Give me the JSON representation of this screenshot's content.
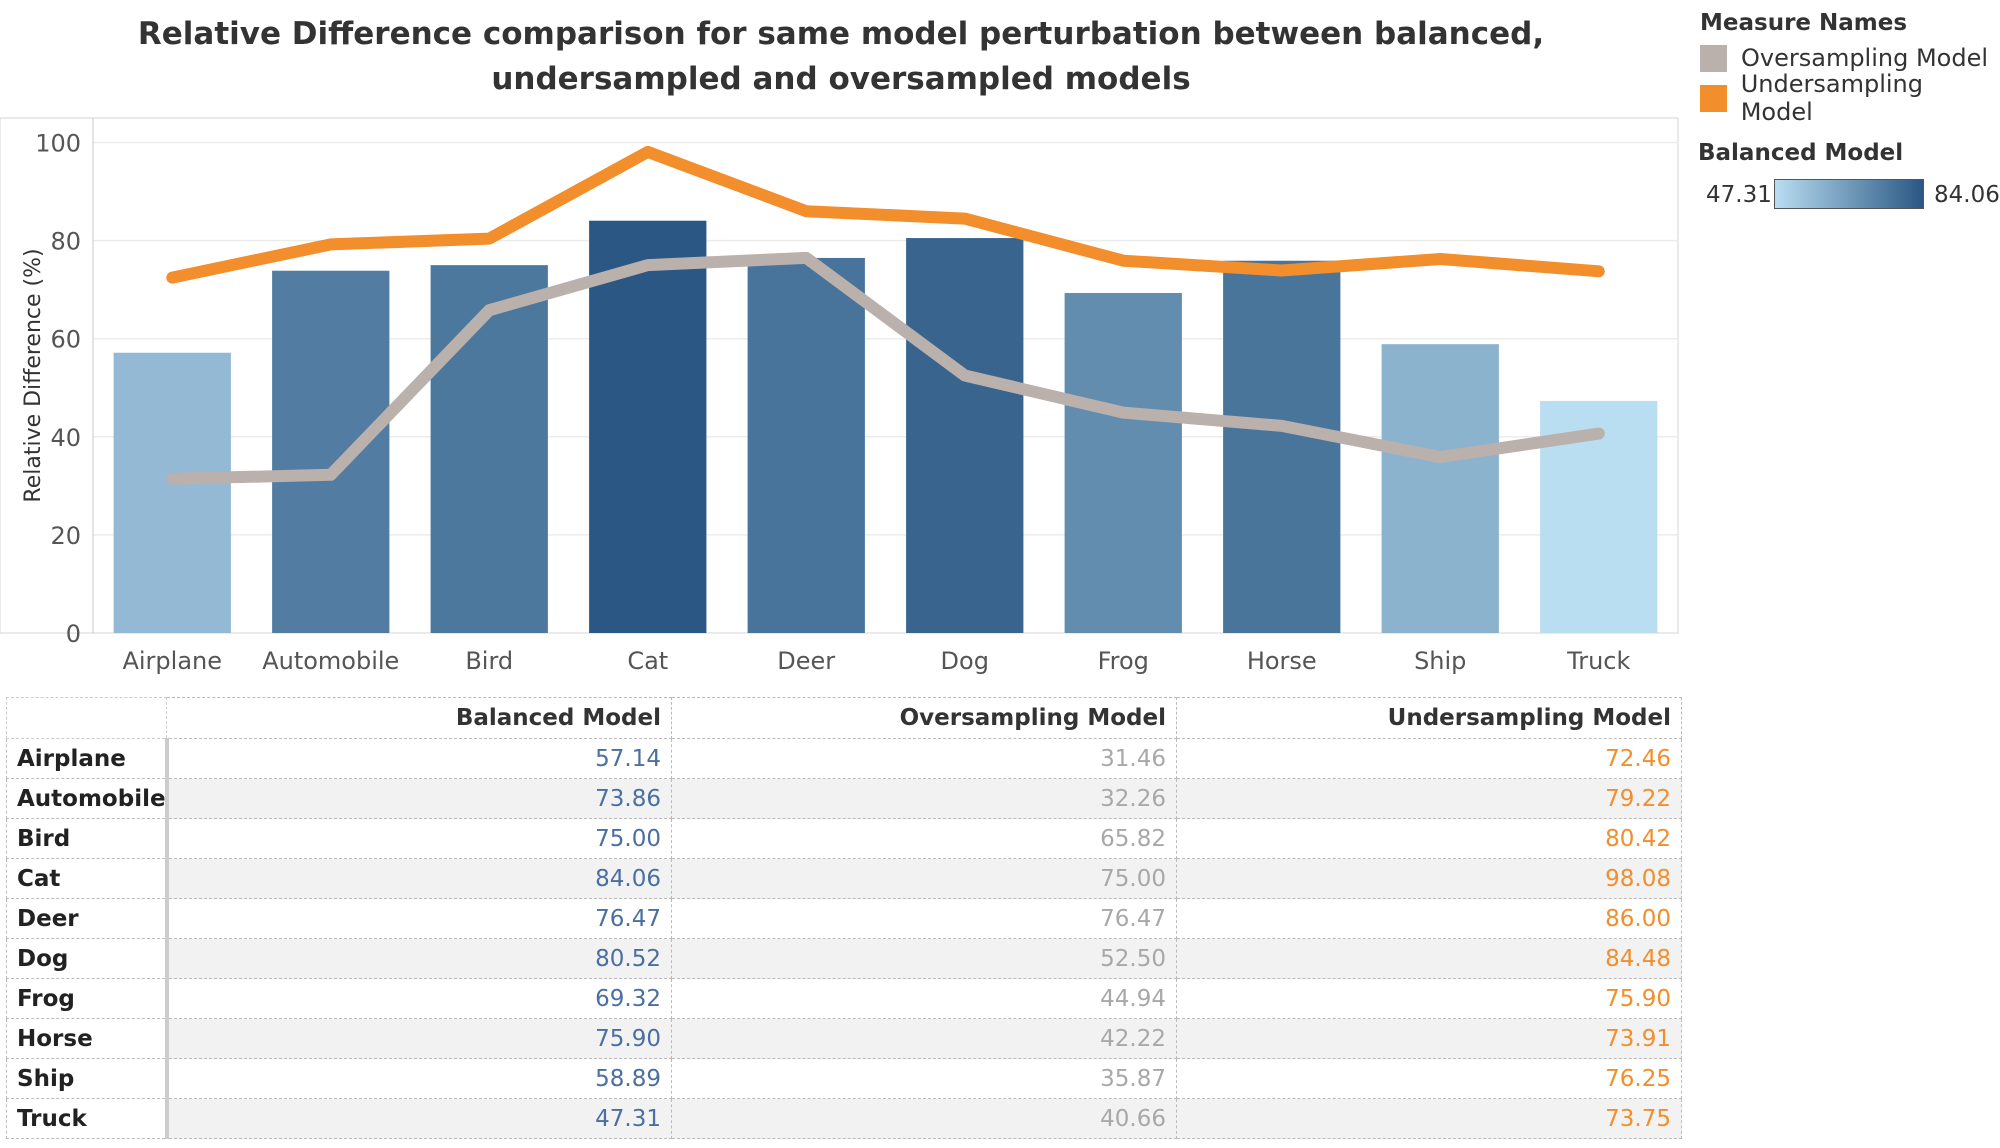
{
  "chart_data": {
    "type": "bar",
    "title": "Relative Difference comparison for same model perturbation between balanced, undersampled and oversampled models",
    "ylabel": "Relative Difference (%)",
    "xlabel": "",
    "ylim": [
      0,
      105
    ],
    "yticks": [
      0,
      20,
      40,
      60,
      80,
      100
    ],
    "grid": true,
    "categories": [
      "Airplane",
      "Automobile",
      "Bird",
      "Cat",
      "Deer",
      "Dog",
      "Frog",
      "Horse",
      "Ship",
      "Truck"
    ],
    "series": [
      {
        "name": "Balanced Model",
        "type": "bar",
        "values": [
          57.14,
          73.86,
          75.0,
          84.06,
          76.47,
          80.52,
          69.32,
          75.9,
          58.89,
          47.31
        ]
      },
      {
        "name": "Oversampling Model",
        "type": "line",
        "color": "#bab0ac",
        "values": [
          31.46,
          32.26,
          65.82,
          75.0,
          76.47,
          52.5,
          44.94,
          42.22,
          35.87,
          40.66
        ]
      },
      {
        "name": "Undersampling Model",
        "type": "line",
        "color": "#f28e2b",
        "values": [
          72.46,
          79.22,
          80.42,
          98.08,
          86.0,
          84.48,
          75.9,
          73.91,
          76.25,
          73.75
        ]
      }
    ],
    "color_scale": {
      "title": "Balanced Model",
      "min": 47.31,
      "max": 84.06,
      "min_label": "47.31",
      "max_label": "84.06",
      "min_color": "#b9ddf1",
      "max_color": "#2a5783"
    },
    "legend": {
      "title": "Measure Names",
      "position": "top-right",
      "items": [
        {
          "label": "Oversampling Model",
          "color": "#bab0ac"
        },
        {
          "label": "Undersampling Model",
          "color": "#f28e2b"
        }
      ]
    }
  },
  "table": {
    "headers": [
      "Balanced Model",
      "Oversampling Model",
      "Undersampling Model"
    ],
    "rows": [
      {
        "label": "Airplane",
        "balanced": "57.14",
        "over": "31.46",
        "under": "72.46"
      },
      {
        "label": "Automobile",
        "balanced": "73.86",
        "over": "32.26",
        "under": "79.22"
      },
      {
        "label": "Bird",
        "balanced": "75.00",
        "over": "65.82",
        "under": "80.42"
      },
      {
        "label": "Cat",
        "balanced": "84.06",
        "over": "75.00",
        "under": "98.08"
      },
      {
        "label": "Deer",
        "balanced": "76.47",
        "over": "76.47",
        "under": "86.00"
      },
      {
        "label": "Dog",
        "balanced": "80.52",
        "over": "52.50",
        "under": "84.48"
      },
      {
        "label": "Frog",
        "balanced": "69.32",
        "over": "44.94",
        "under": "75.90"
      },
      {
        "label": "Horse",
        "balanced": "75.90",
        "over": "42.22",
        "under": "73.91"
      },
      {
        "label": "Ship",
        "balanced": "58.89",
        "over": "35.87",
        "under": "76.25"
      },
      {
        "label": "Truck",
        "balanced": "47.31",
        "over": "40.66",
        "under": "73.75"
      }
    ]
  }
}
